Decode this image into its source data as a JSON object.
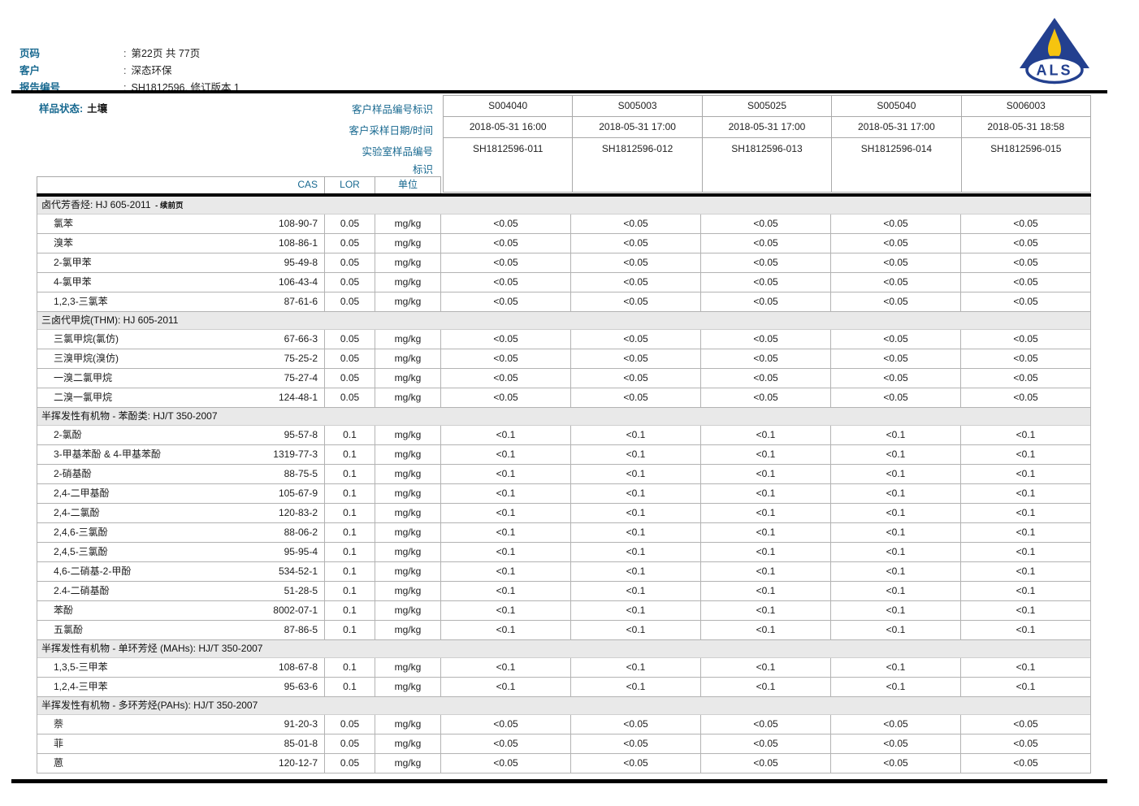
{
  "letterhead": {
    "colon": ":",
    "fields": [
      {
        "label": "页码",
        "value": "第22页 共 77页"
      },
      {
        "label": "客户",
        "value": "深态环保"
      },
      {
        "label": "报告编号",
        "value": "SH1812596, 修订版本 1"
      }
    ],
    "logo_text": "ALS"
  },
  "sample_header": {
    "status_label": "样品状态:",
    "status_value": "土壤",
    "row_labels": {
      "client_id": "客户样品编号标识",
      "sampling_datetime": "客户采样日期/时间",
      "lab_id": "实验室样品编号",
      "mark": "标识"
    },
    "param_columns": {
      "cas": "CAS",
      "lor": "LOR",
      "unit": "单位"
    },
    "samples": [
      {
        "client_id": "S004040",
        "datetime": "2018-05-31 16:00",
        "lab_id": "SH1812596-011"
      },
      {
        "client_id": "S005003",
        "datetime": "2018-05-31 17:00",
        "lab_id": "SH1812596-012"
      },
      {
        "client_id": "S005025",
        "datetime": "2018-05-31 17:00",
        "lab_id": "SH1812596-013"
      },
      {
        "client_id": "S005040",
        "datetime": "2018-05-31 17:00",
        "lab_id": "SH1812596-014"
      },
      {
        "client_id": "S006003",
        "datetime": "2018-05-31 18:58",
        "lab_id": "SH1812596-015"
      }
    ]
  },
  "results": {
    "sections": [
      {
        "title": "卤代芳香烃: HJ 605-2011",
        "title_suffix": "- 续前页",
        "rows": [
          {
            "name": "氯苯",
            "cas": "108-90-7",
            "lor": "0.05",
            "unit": "mg/kg",
            "values": [
              "<0.05",
              "<0.05",
              "<0.05",
              "<0.05",
              "<0.05"
            ]
          },
          {
            "name": "溴苯",
            "cas": "108-86-1",
            "lor": "0.05",
            "unit": "mg/kg",
            "values": [
              "<0.05",
              "<0.05",
              "<0.05",
              "<0.05",
              "<0.05"
            ]
          },
          {
            "name": "2-氯甲苯",
            "cas": "95-49-8",
            "lor": "0.05",
            "unit": "mg/kg",
            "values": [
              "<0.05",
              "<0.05",
              "<0.05",
              "<0.05",
              "<0.05"
            ]
          },
          {
            "name": "4-氯甲苯",
            "cas": "106-43-4",
            "lor": "0.05",
            "unit": "mg/kg",
            "values": [
              "<0.05",
              "<0.05",
              "<0.05",
              "<0.05",
              "<0.05"
            ]
          },
          {
            "name": "1,2,3-三氯苯",
            "cas": "87-61-6",
            "lor": "0.05",
            "unit": "mg/kg",
            "values": [
              "<0.05",
              "<0.05",
              "<0.05",
              "<0.05",
              "<0.05"
            ]
          }
        ]
      },
      {
        "title": "三卤代甲烷(THM): HJ 605-2011",
        "title_suffix": "",
        "rows": [
          {
            "name": "三氯甲烷(氯仿)",
            "cas": "67-66-3",
            "lor": "0.05",
            "unit": "mg/kg",
            "values": [
              "<0.05",
              "<0.05",
              "<0.05",
              "<0.05",
              "<0.05"
            ]
          },
          {
            "name": "三溴甲烷(溴仿)",
            "cas": "75-25-2",
            "lor": "0.05",
            "unit": "mg/kg",
            "values": [
              "<0.05",
              "<0.05",
              "<0.05",
              "<0.05",
              "<0.05"
            ]
          },
          {
            "name": "一溴二氯甲烷",
            "cas": "75-27-4",
            "lor": "0.05",
            "unit": "mg/kg",
            "values": [
              "<0.05",
              "<0.05",
              "<0.05",
              "<0.05",
              "<0.05"
            ]
          },
          {
            "name": "二溴一氯甲烷",
            "cas": "124-48-1",
            "lor": "0.05",
            "unit": "mg/kg",
            "values": [
              "<0.05",
              "<0.05",
              "<0.05",
              "<0.05",
              "<0.05"
            ]
          }
        ]
      },
      {
        "title": "半挥发性有机物 - 苯酚类: HJ/T 350-2007",
        "title_suffix": "",
        "rows": [
          {
            "name": "2-氯酚",
            "cas": "95-57-8",
            "lor": "0.1",
            "unit": "mg/kg",
            "values": [
              "<0.1",
              "<0.1",
              "<0.1",
              "<0.1",
              "<0.1"
            ]
          },
          {
            "name": "3-甲基苯酚 & 4-甲基苯酚",
            "cas": "1319-77-3",
            "lor": "0.1",
            "unit": "mg/kg",
            "values": [
              "<0.1",
              "<0.1",
              "<0.1",
              "<0.1",
              "<0.1"
            ]
          },
          {
            "name": "2-硝基酚",
            "cas": "88-75-5",
            "lor": "0.1",
            "unit": "mg/kg",
            "values": [
              "<0.1",
              "<0.1",
              "<0.1",
              "<0.1",
              "<0.1"
            ]
          },
          {
            "name": "2,4-二甲基酚",
            "cas": "105-67-9",
            "lor": "0.1",
            "unit": "mg/kg",
            "values": [
              "<0.1",
              "<0.1",
              "<0.1",
              "<0.1",
              "<0.1"
            ]
          },
          {
            "name": "2,4-二氯酚",
            "cas": "120-83-2",
            "lor": "0.1",
            "unit": "mg/kg",
            "values": [
              "<0.1",
              "<0.1",
              "<0.1",
              "<0.1",
              "<0.1"
            ]
          },
          {
            "name": "2,4,6-三氯酚",
            "cas": "88-06-2",
            "lor": "0.1",
            "unit": "mg/kg",
            "values": [
              "<0.1",
              "<0.1",
              "<0.1",
              "<0.1",
              "<0.1"
            ]
          },
          {
            "name": "2,4,5-三氯酚",
            "cas": "95-95-4",
            "lor": "0.1",
            "unit": "mg/kg",
            "values": [
              "<0.1",
              "<0.1",
              "<0.1",
              "<0.1",
              "<0.1"
            ]
          },
          {
            "name": "4,6-二硝基-2-甲酚",
            "cas": "534-52-1",
            "lor": "0.1",
            "unit": "mg/kg",
            "values": [
              "<0.1",
              "<0.1",
              "<0.1",
              "<0.1",
              "<0.1"
            ]
          },
          {
            "name": "2.4-二硝基酚",
            "cas": "51-28-5",
            "lor": "0.1",
            "unit": "mg/kg",
            "values": [
              "<0.1",
              "<0.1",
              "<0.1",
              "<0.1",
              "<0.1"
            ]
          },
          {
            "name": "苯酚",
            "cas": "8002-07-1",
            "lor": "0.1",
            "unit": "mg/kg",
            "values": [
              "<0.1",
              "<0.1",
              "<0.1",
              "<0.1",
              "<0.1"
            ]
          },
          {
            "name": "五氯酚",
            "cas": "87-86-5",
            "lor": "0.1",
            "unit": "mg/kg",
            "values": [
              "<0.1",
              "<0.1",
              "<0.1",
              "<0.1",
              "<0.1"
            ]
          }
        ]
      },
      {
        "title": "半挥发性有机物 - 单环芳烃 (MAHs): HJ/T 350-2007",
        "title_suffix": "",
        "rows": [
          {
            "name": "1,3,5-三甲苯",
            "cas": "108-67-8",
            "lor": "0.1",
            "unit": "mg/kg",
            "values": [
              "<0.1",
              "<0.1",
              "<0.1",
              "<0.1",
              "<0.1"
            ]
          },
          {
            "name": "1,2,4-三甲苯",
            "cas": "95-63-6",
            "lor": "0.1",
            "unit": "mg/kg",
            "values": [
              "<0.1",
              "<0.1",
              "<0.1",
              "<0.1",
              "<0.1"
            ]
          }
        ]
      },
      {
        "title": "半挥发性有机物 - 多环芳烃(PAHs): HJ/T 350-2007",
        "title_suffix": "",
        "rows": [
          {
            "name": "萘",
            "cas": "91-20-3",
            "lor": "0.05",
            "unit": "mg/kg",
            "values": [
              "<0.05",
              "<0.05",
              "<0.05",
              "<0.05",
              "<0.05"
            ]
          },
          {
            "name": "菲",
            "cas": "85-01-8",
            "lor": "0.05",
            "unit": "mg/kg",
            "values": [
              "<0.05",
              "<0.05",
              "<0.05",
              "<0.05",
              "<0.05"
            ]
          },
          {
            "name": "蒽",
            "cas": "120-12-7",
            "lor": "0.05",
            "unit": "mg/kg",
            "values": [
              "<0.05",
              "<0.05",
              "<0.05",
              "<0.05",
              "<0.05"
            ]
          }
        ]
      }
    ]
  }
}
